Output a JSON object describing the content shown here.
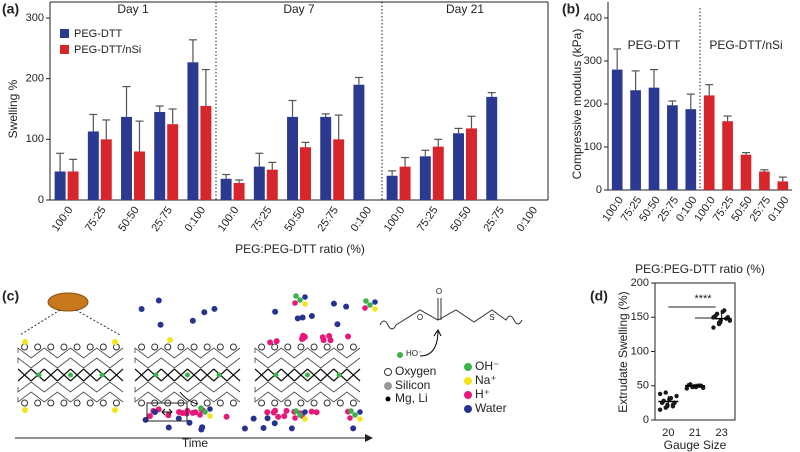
{
  "chart_data": [
    {
      "type": "grouped_bar",
      "panel": "(a)",
      "ylabel": "Swelling %",
      "xlabel": "PEG:PEG-DTT ratio (%)",
      "groups": [
        "Day 1",
        "Day 7",
        "Day 21"
      ],
      "categories": [
        "100:0",
        "75:25",
        "50:50",
        "25:75",
        "0:100",
        "100:0",
        "75:25",
        "50:50",
        "25:75",
        "0:100",
        "100:0",
        "75:25",
        "50:50",
        "25:75",
        "0:100"
      ],
      "series": [
        {
          "name": "PEG-DTT",
          "color": "#2b3990",
          "values": [
            47,
            113,
            137,
            145,
            227,
            35,
            55,
            137,
            137,
            190,
            40,
            72,
            110,
            170,
            null
          ],
          "errors": [
            30,
            28,
            50,
            10,
            37,
            7,
            22,
            27,
            5,
            12,
            8,
            10,
            8,
            7,
            null
          ]
        },
        {
          "name": "PEG-DTT/nSi",
          "color": "#d6262c",
          "values": [
            47,
            100,
            80,
            125,
            155,
            28,
            50,
            87,
            100,
            null,
            55,
            88,
            118,
            null,
            null
          ],
          "errors": [
            20,
            32,
            50,
            25,
            60,
            5,
            12,
            8,
            40,
            null,
            15,
            12,
            20,
            null,
            null
          ]
        }
      ],
      "ylim": [
        0,
        300
      ],
      "yticks": [
        0,
        100,
        200,
        300
      ],
      "legend": "upper left"
    },
    {
      "type": "bar",
      "panel": "(b)",
      "ylabel": "Compressive modulus (kPa)",
      "xlabel": "PEG:PEG-DTT ratio (%)",
      "categories": [
        "100:0",
        "75:25",
        "50:50",
        "25:75",
        "0:100",
        "100:0",
        "75:25",
        "50:50",
        "25:75",
        "0:100"
      ],
      "series": [
        {
          "name": "PEG-DTT",
          "color": "#2b3990",
          "values": [
            280,
            232,
            238,
            197,
            188,
            null,
            null,
            null,
            null,
            null
          ],
          "errors": [
            48,
            45,
            42,
            10,
            35,
            null,
            null,
            null,
            null,
            null
          ]
        },
        {
          "name": "PEG-DTT/nSi",
          "color": "#d6262c",
          "values": [
            null,
            null,
            null,
            null,
            null,
            220,
            160,
            82,
            43,
            20
          ],
          "errors": [
            null,
            null,
            null,
            null,
            null,
            25,
            12,
            5,
            4,
            10
          ]
        }
      ],
      "ylim": [
        0,
        400
      ],
      "yticks": [
        0,
        100,
        200,
        300,
        400
      ]
    },
    {
      "type": "dot",
      "panel": "(d)",
      "ylabel": "Extrudate Swelling (%)",
      "xlabel": "Gauge Size",
      "categories": [
        "20",
        "21",
        "23"
      ],
      "color": "#1a1a1a",
      "points": [
        [
          15,
          18,
          20,
          22,
          25,
          25,
          28,
          30,
          32,
          35,
          38,
          40,
          22,
          20
        ],
        [
          46,
          48,
          49,
          50,
          50,
          51,
          52,
          48,
          50,
          47
        ],
        [
          135,
          140,
          145,
          148,
          150,
          152,
          155,
          158,
          160,
          145,
          150,
          142
        ]
      ],
      "means": [
        27,
        50,
        148
      ],
      "sd": [
        8,
        3,
        8
      ],
      "annotation": "****",
      "ylim": [
        0,
        200
      ],
      "yticks": [
        0,
        50,
        100,
        150,
        200
      ]
    }
  ],
  "diagram": {
    "panel": "(c)",
    "time_label": "Time",
    "legend": [
      "Oxygen",
      "Silicon",
      "Mg, Li",
      "OH⁻",
      "Na⁺",
      "H⁺",
      "Water"
    ],
    "molecule": {
      "carbonyl_o": "O",
      "ester_o": "O",
      "sulfur": "S",
      "hydroxide": "HO⁻"
    }
  }
}
